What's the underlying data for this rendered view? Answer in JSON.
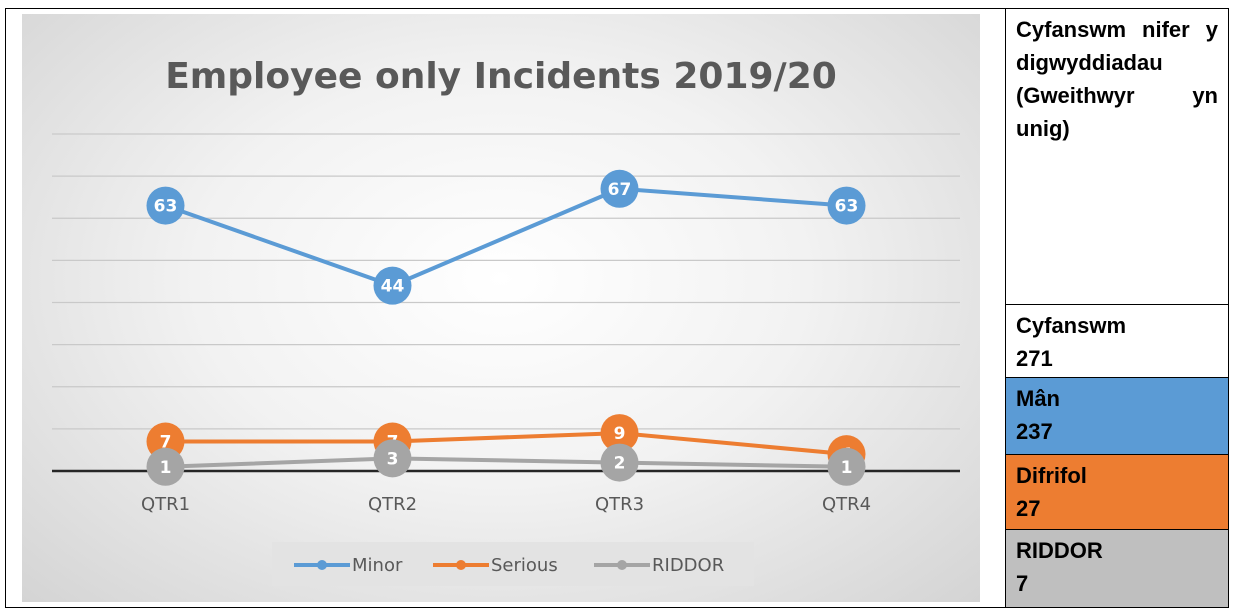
{
  "chart_data": {
    "type": "line",
    "title": "Employee only Incidents 2019/20",
    "categories": [
      "QTR1",
      "QTR2",
      "QTR3",
      "QTR4"
    ],
    "series": [
      {
        "name": "Minor",
        "values": [
          63,
          44,
          67,
          63
        ],
        "color": "#5b9bd5"
      },
      {
        "name": "Serious",
        "values": [
          7,
          7,
          9,
          4
        ],
        "color": "#ed7d31"
      },
      {
        "name": "RIDDOR",
        "values": [
          1,
          3,
          2,
          1
        ],
        "color": "#a5a5a5"
      }
    ],
    "ylim": [
      0,
      80
    ],
    "grid": true,
    "legend": "bottom",
    "data_labels": true
  },
  "side_panel": {
    "title": "Cyfanswm nifer y digwyddiadau (Gweithwyr yn unig)",
    "total": {
      "label": "Cyfanswm",
      "value": "271",
      "color": "#ffffff"
    },
    "minor": {
      "label": "Mân",
      "value": "237",
      "color": "#5b9bd5"
    },
    "serious": {
      "label": "Difrifol",
      "value": "27",
      "color": "#ed7d31"
    },
    "riddor": {
      "label": "RIDDOR",
      "value": "7",
      "color": "#bfbfbf"
    }
  }
}
